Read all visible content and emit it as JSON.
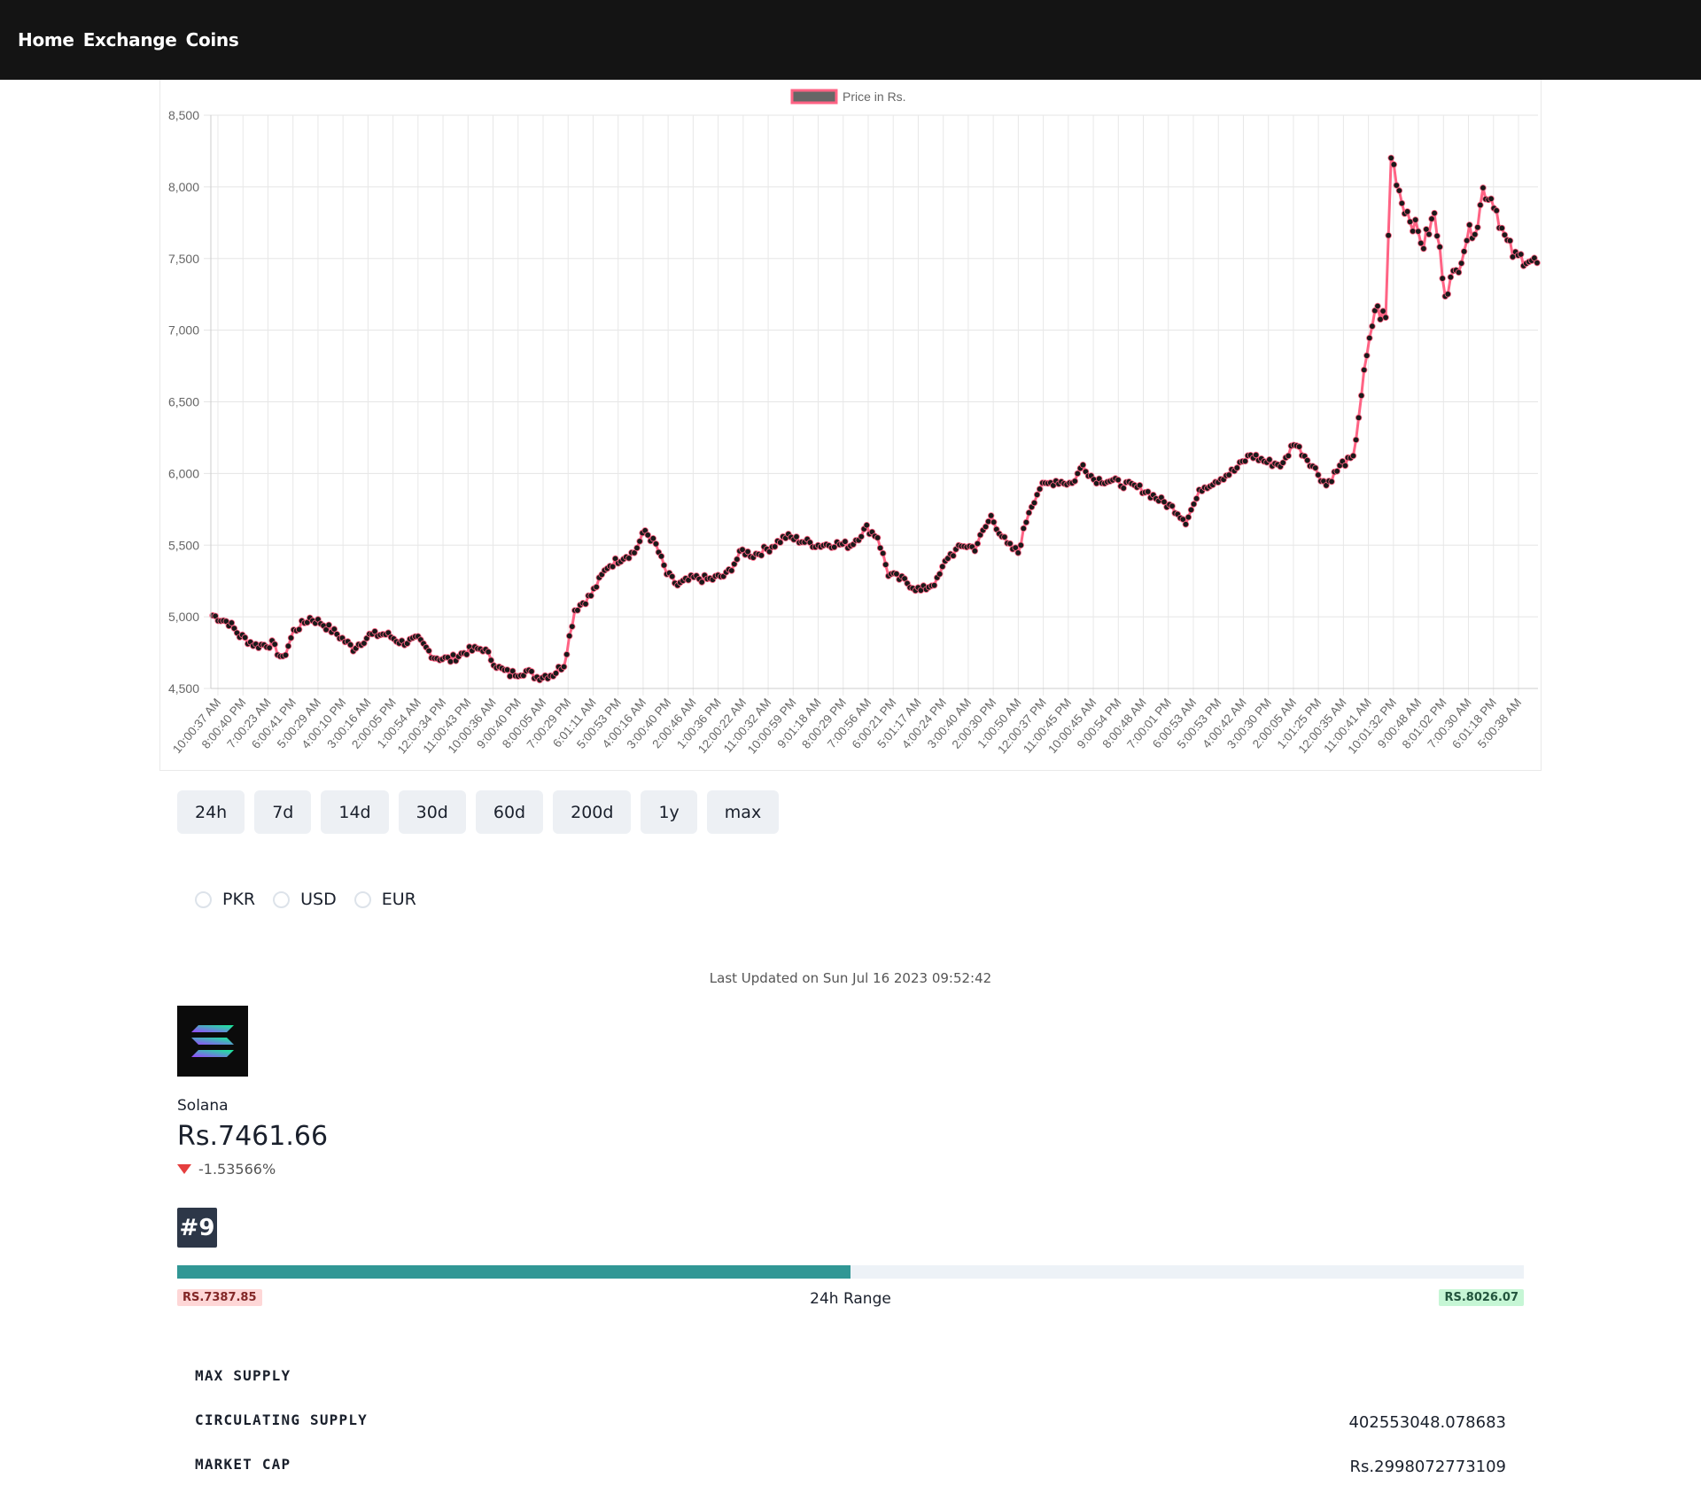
{
  "nav": {
    "items": [
      "Home",
      "Exchange",
      "Coins"
    ]
  },
  "chart_data": {
    "type": "line",
    "legend": "Price in Rs.",
    "color": "#ff6384",
    "point_color": "#1a1a1a",
    "ylim": [
      4500,
      8500
    ],
    "y_ticks": [
      "8,500",
      "8,000",
      "7,500",
      "7,000",
      "6,500",
      "6,000",
      "5,500",
      "5,000",
      "4,500"
    ],
    "x_labels": [
      "10:00:37 AM",
      "8:00:40 PM",
      "7:00:23 AM",
      "6:00:41 PM",
      "5:00:29 AM",
      "4:00:10 PM",
      "3:00:16 AM",
      "2:00:05 PM",
      "1:00:54 AM",
      "12:00:34 PM",
      "11:00:43 PM",
      "10:00:36 AM",
      "9:00:40 PM",
      "8:00:05 AM",
      "7:00:29 PM",
      "6:01:11 AM",
      "5:00:53 PM",
      "4:00:16 AM",
      "3:00:40 PM",
      "2:00:46 AM",
      "1:00:36 PM",
      "12:00:22 AM",
      "11:00:32 AM",
      "10:00:59 PM",
      "9:01:18 AM",
      "8:00:29 PM",
      "7:00:56 AM",
      "6:00:21 PM",
      "5:01:17 AM",
      "4:00:24 PM",
      "3:00:40 AM",
      "2:00:30 PM",
      "1:00:50 AM",
      "12:00:37 PM",
      "11:00:45 PM",
      "10:00:45 AM",
      "9:00:54 PM",
      "8:00:48 AM",
      "7:00:01 PM",
      "6:00:53 AM",
      "5:00:53 PM",
      "4:00:42 AM",
      "3:00:30 PM",
      "2:00:05 AM",
      "1:01:25 PM",
      "12:00:35 AM",
      "11:00:41 AM",
      "10:01:32 PM",
      "9:00:48 AM",
      "8:01:02 PM",
      "7:00:30 AM",
      "6:01:18 PM",
      "5:00:38 AM"
    ],
    "anchors": [
      [
        0,
        5010
      ],
      [
        6,
        4960
      ],
      [
        10,
        4870
      ],
      [
        16,
        4800
      ],
      [
        22,
        4810
      ],
      [
        26,
        4700
      ],
      [
        30,
        4900
      ],
      [
        36,
        4990
      ],
      [
        40,
        4960
      ],
      [
        46,
        4880
      ],
      [
        52,
        4780
      ],
      [
        58,
        4870
      ],
      [
        64,
        4880
      ],
      [
        70,
        4820
      ],
      [
        76,
        4840
      ],
      [
        82,
        4720
      ],
      [
        88,
        4700
      ],
      [
        94,
        4760
      ],
      [
        100,
        4780
      ],
      [
        106,
        4640
      ],
      [
        110,
        4600
      ],
      [
        116,
        4620
      ],
      [
        120,
        4580
      ],
      [
        126,
        4600
      ],
      [
        130,
        4670
      ],
      [
        134,
        5050
      ],
      [
        140,
        5150
      ],
      [
        146,
        5350
      ],
      [
        152,
        5420
      ],
      [
        156,
        5450
      ],
      [
        160,
        5600
      ],
      [
        164,
        5500
      ],
      [
        168,
        5300
      ],
      [
        172,
        5220
      ],
      [
        178,
        5270
      ],
      [
        184,
        5260
      ],
      [
        190,
        5290
      ],
      [
        196,
        5460
      ],
      [
        200,
        5430
      ],
      [
        206,
        5480
      ],
      [
        212,
        5560
      ],
      [
        218,
        5530
      ],
      [
        224,
        5500
      ],
      [
        230,
        5510
      ],
      [
        236,
        5500
      ],
      [
        242,
        5620
      ],
      [
        246,
        5560
      ],
      [
        250,
        5300
      ],
      [
        256,
        5250
      ],
      [
        262,
        5180
      ],
      [
        268,
        5250
      ],
      [
        272,
        5420
      ],
      [
        278,
        5500
      ],
      [
        282,
        5480
      ],
      [
        288,
        5700
      ],
      [
        294,
        5500
      ],
      [
        298,
        5450
      ],
      [
        302,
        5740
      ],
      [
        306,
        5900
      ],
      [
        312,
        5950
      ],
      [
        318,
        5930
      ],
      [
        322,
        6060
      ],
      [
        326,
        5960
      ],
      [
        332,
        5950
      ],
      [
        338,
        5920
      ],
      [
        344,
        5890
      ],
      [
        350,
        5820
      ],
      [
        356,
        5750
      ],
      [
        360,
        5670
      ],
      [
        366,
        5900
      ],
      [
        372,
        5960
      ],
      [
        378,
        6020
      ],
      [
        384,
        6130
      ],
      [
        390,
        6080
      ],
      [
        396,
        6060
      ],
      [
        400,
        6220
      ],
      [
        406,
        6080
      ],
      [
        412,
        5920
      ],
      [
        418,
        6070
      ],
      [
        422,
        6100
      ],
      [
        426,
        6700
      ],
      [
        430,
        7150
      ],
      [
        434,
        7080
      ],
      [
        436,
        8220
      ],
      [
        440,
        7900
      ],
      [
        444,
        7750
      ],
      [
        448,
        7600
      ],
      [
        452,
        7800
      ],
      [
        456,
        7280
      ],
      [
        460,
        7400
      ],
      [
        464,
        7650
      ],
      [
        468,
        7750
      ],
      [
        470,
        7980
      ],
      [
        474,
        7900
      ],
      [
        478,
        7640
      ],
      [
        482,
        7500
      ],
      [
        486,
        7510
      ],
      [
        490,
        7460
      ]
    ]
  },
  "range_buttons": [
    "24h",
    "7d",
    "14d",
    "30d",
    "60d",
    "200d",
    "1y",
    "max"
  ],
  "currencies": [
    "PKR",
    "USD",
    "EUR"
  ],
  "last_updated": "Last Updated on Sun Jul 16 2023 09:52:42",
  "coin": {
    "name": "Solana",
    "price": "Rs.7461.66",
    "change": "-1.53566%",
    "rank": "#9",
    "range_low": "RS.7387.85",
    "range_high": "RS.8026.07",
    "range_label": "24h Range",
    "range_fraction": 0.5
  },
  "stats": [
    {
      "label": "Max Supply",
      "value": ""
    },
    {
      "label": "Circulating Supply",
      "value": "402553048.078683"
    },
    {
      "label": "Market Cap",
      "value": "Rs.2998072773109"
    }
  ]
}
